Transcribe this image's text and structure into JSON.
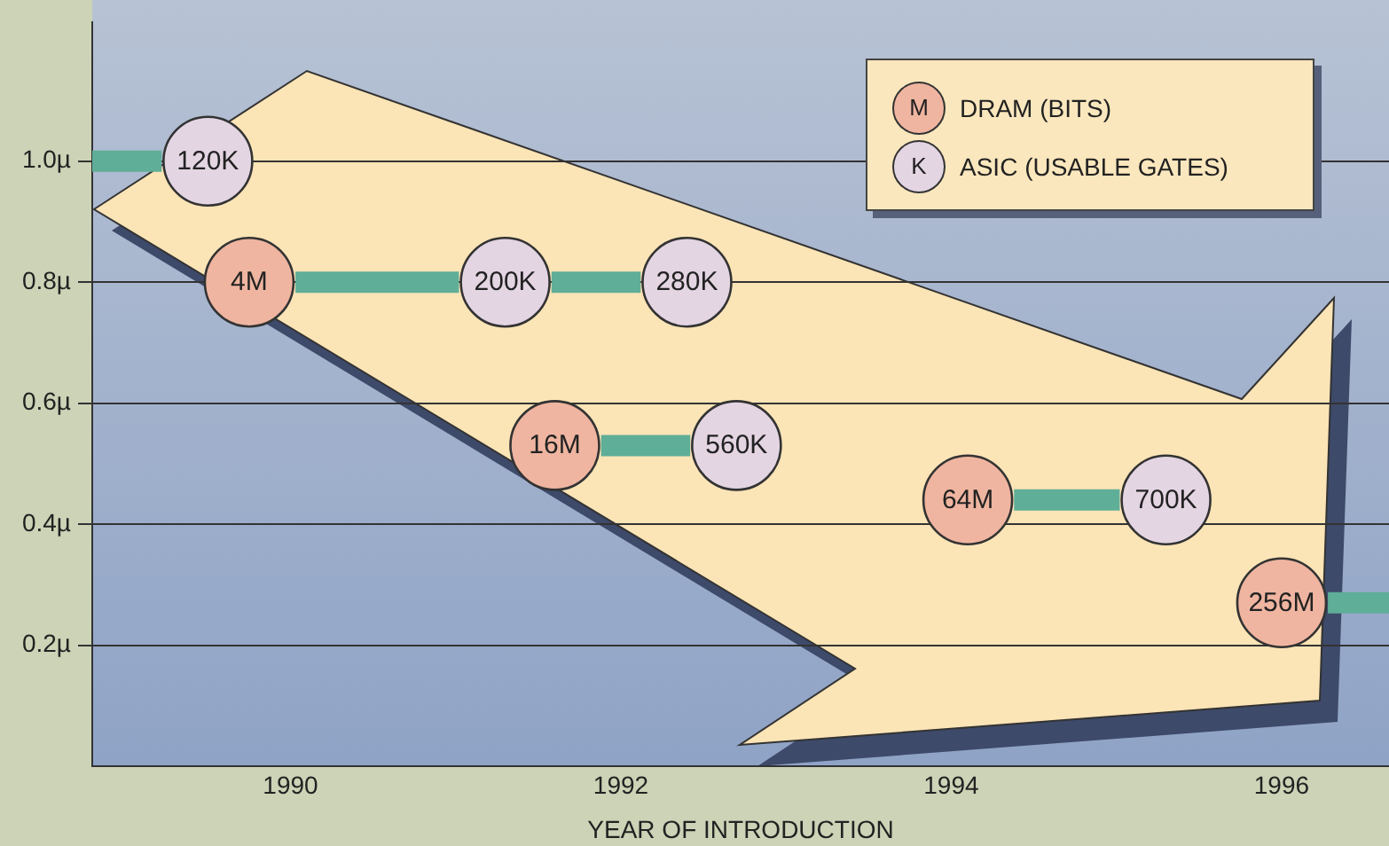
{
  "chart_data": {
    "type": "scatter",
    "xlabel": "YEAR OF INTRODUCTION",
    "xlim": [
      1988.8,
      1996.65
    ],
    "ylim": [
      0,
      1.23
    ],
    "xticks": [
      1990,
      1992,
      1994,
      1996
    ],
    "yticks": [
      {
        "value": 0.2,
        "label": "0.2µ"
      },
      {
        "value": 0.4,
        "label": "0.4µ"
      },
      {
        "value": 0.6,
        "label": "0.6µ"
      },
      {
        "value": 0.8,
        "label": "0.8µ"
      },
      {
        "value": 1.0,
        "label": "1.0µ"
      }
    ],
    "grid": "y",
    "legend": "top right",
    "annotations": [
      "M",
      "K",
      {
        "text": "4M",
        "x": 1989.75,
        "y": 0.8
      },
      {
        "text": "16M",
        "x": 1991.6,
        "y": 0.53
      },
      {
        "text": "64M",
        "x": 1994.1,
        "y": 0.44
      },
      {
        "text": "256M",
        "x": 1996.0,
        "y": 0.27
      },
      {
        "text": "120K",
        "x": 1989.5,
        "y": 1.0
      },
      {
        "text": "200K",
        "x": 1991.3,
        "y": 0.8
      },
      {
        "text": "280K",
        "x": 1992.4,
        "y": 0.8
      },
      {
        "text": "560K",
        "x": 1992.7,
        "y": 0.53
      },
      {
        "text": "700K",
        "x": 1995.3,
        "y": 0.44
      }
    ],
    "series": [
      {
        "type": "line",
        "color": "#5fae98",
        "x": [
          1988.8,
          1989.22
        ],
        "values": [
          1.0,
          1.0
        ]
      },
      {
        "type": "line",
        "color": "#5fae98",
        "x": [
          1990.03,
          1991.02,
          null,
          1991.58,
          1992.12
        ],
        "values": [
          0.8,
          0.8,
          null,
          0.8,
          0.8
        ]
      },
      {
        "type": "line",
        "color": "#5fae98",
        "x": [
          1991.88,
          1992.42
        ],
        "values": [
          0.53,
          0.53
        ]
      },
      {
        "type": "line",
        "color": "#5fae98",
        "x": [
          1994.38,
          1995.02
        ],
        "values": [
          0.44,
          0.44
        ]
      },
      {
        "type": "line",
        "color": "#5fae98",
        "x": [
          1996.28,
          1996.65
        ],
        "values": [
          0.27,
          0.27
        ]
      },
      {
        "name": "DRAM (BITS)",
        "color": "#efb5a0",
        "marker": "circle",
        "x": [
          1989.75,
          1991.6,
          1994.1,
          1996.0
        ],
        "values": [
          0.8,
          0.53,
          0.44,
          0.27
        ]
      },
      {
        "name": "ASIC (USABLE GATES)",
        "color": "#e4d5e3",
        "marker": "circle",
        "x": [
          1989.5,
          1991.3,
          1992.4,
          1992.7,
          1995.3
        ],
        "values": [
          1.0,
          0.8,
          0.8,
          0.53,
          0.44
        ]
      }
    ]
  }
}
